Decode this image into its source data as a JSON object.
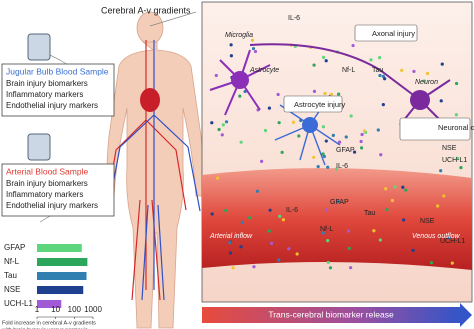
{
  "header": {
    "title": "Cerebral A-v gradients"
  },
  "jugular": {
    "title": "Jugular Bulb Blood Sample",
    "items": [
      "Brain injury  biomarkers",
      "Inflammatory markers",
      "Endothelial injury markers"
    ]
  },
  "arterial": {
    "title": "Arterial Blood Sample",
    "items": [
      "Brain injury  biomarkers",
      "Inflammatory markers",
      "Endothelial injury markers"
    ]
  },
  "chart": {
    "type": "bar",
    "orientation": "horizontal",
    "categories": [
      "GFAP",
      "Nf-L",
      "Tau",
      "NSE",
      "UCH-L1"
    ],
    "values": [
      250,
      500,
      450,
      300,
      20
    ],
    "colors": [
      "#5ed67b",
      "#2ca65a",
      "#2f7fb0",
      "#1f3f8f",
      "#a35ad6"
    ],
    "xlim": [
      1,
      1000
    ],
    "xticks": [
      1,
      10,
      100,
      1000
    ],
    "log_scale": true,
    "caption": [
      "Fold increase in cerebral A-v gradients",
      "with brain hypoxia versus normoxia"
    ]
  },
  "panel": {
    "labels": [
      "Microglia",
      "IL-6",
      "Astrocyte",
      "Axonal injury",
      "Nf-L",
      "Tau",
      "Neuron",
      "Astrocyte injury",
      "GFAP",
      "IL-6",
      "Neuronal cell body injury",
      "UCH-L1",
      "NSE",
      "Tau",
      "NSE",
      "UCH-L1",
      "GFAP",
      "IL-6",
      "Nf-L",
      "Arterial inflow",
      "Venous outflow"
    ],
    "arrow": "Trans-cerebral biomarker release"
  }
}
